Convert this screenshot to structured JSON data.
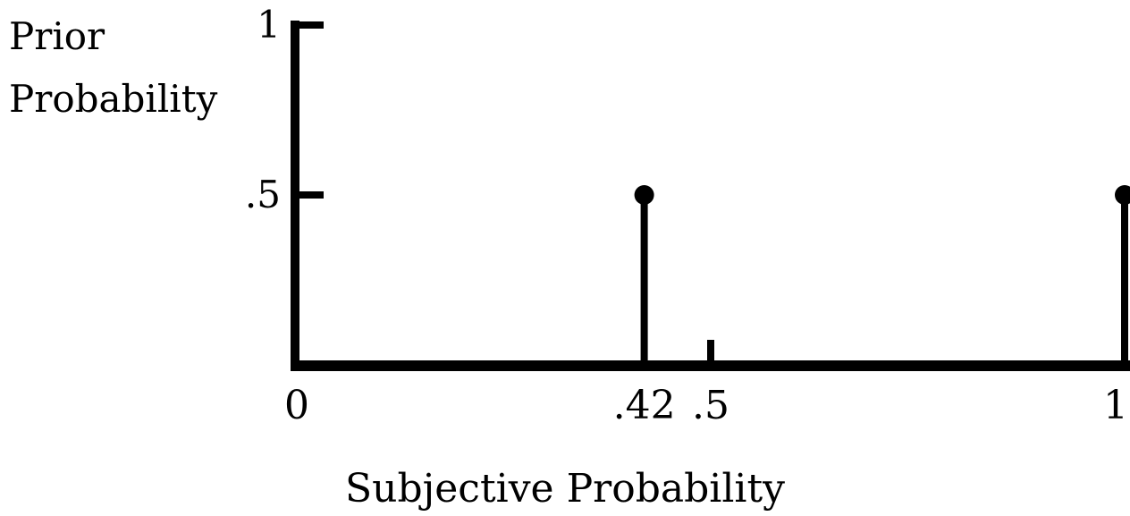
{
  "chart_data": {
    "type": "stem",
    "title": "",
    "xlabel": "Subjective Probability",
    "ylabel_lines": [
      "Prior",
      "Probability"
    ],
    "xlim": [
      0,
      1
    ],
    "ylim": [
      0,
      1
    ],
    "grid": false,
    "x_ticks": [
      {
        "value": 0,
        "label": "0"
      },
      {
        "value": 0.42,
        "label": ".42"
      },
      {
        "value": 0.5,
        "label": ".5"
      },
      {
        "value": 1,
        "label": "1"
      }
    ],
    "y_ticks": [
      {
        "value": 0.5,
        "label": ".5"
      },
      {
        "value": 1,
        "label": "1"
      }
    ],
    "points": [
      {
        "x": 0.42,
        "y": 0.5
      },
      {
        "x": 1,
        "y": 0.5
      }
    ],
    "colors": {
      "ink": "#000000",
      "background": "#ffffff"
    }
  }
}
